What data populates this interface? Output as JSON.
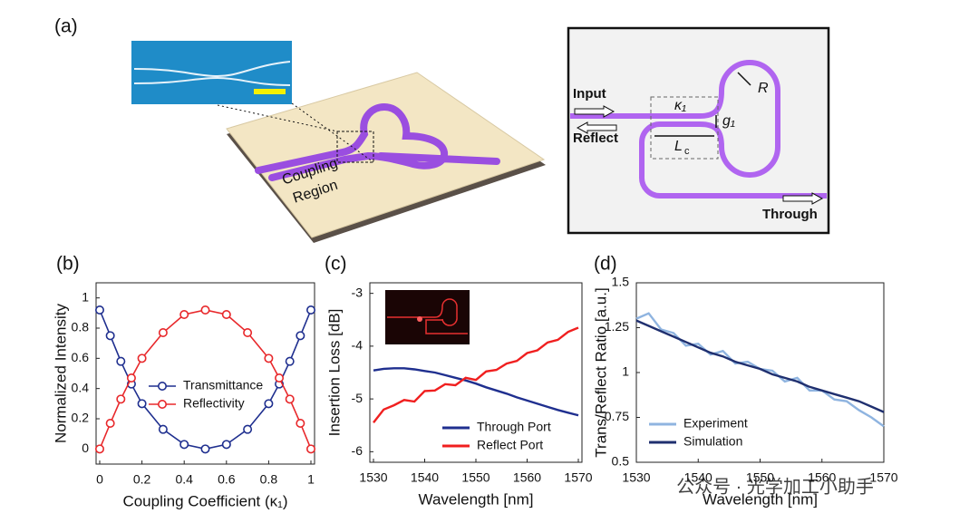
{
  "panel_a": {
    "label": "(a)",
    "coupling_region": [
      "Coupling",
      "Region"
    ],
    "schematic": {
      "input": "Input",
      "reflect": "Reflect",
      "through": "Through",
      "kappa": "κ₁",
      "gap": "g₁",
      "length": "L",
      "length_sub": "c",
      "radius": "R"
    }
  },
  "chart_data": [
    {
      "type": "line",
      "label": "(b)",
      "x_label": "Coupling Coefficient (κ₁)",
      "y_label": "Normalized Intensity",
      "x": [
        0,
        0.05,
        0.1,
        0.15,
        0.2,
        0.3,
        0.4,
        0.5,
        0.6,
        0.7,
        0.8,
        0.85,
        0.9,
        0.95,
        1
      ],
      "series": [
        {
          "name": "Transmittance",
          "color": "#1f2f8f",
          "values": [
            0.92,
            0.75,
            0.58,
            0.43,
            0.3,
            0.13,
            0.03,
            0,
            0.03,
            0.13,
            0.3,
            0.43,
            0.58,
            0.75,
            0.92
          ]
        },
        {
          "name": "Reflectivity",
          "color": "#e8282b",
          "values": [
            0,
            0.17,
            0.33,
            0.47,
            0.6,
            0.77,
            0.89,
            0.92,
            0.89,
            0.77,
            0.6,
            0.47,
            0.33,
            0.17,
            0
          ]
        }
      ],
      "markers": true,
      "legend": "center",
      "xlim": [
        0,
        1
      ],
      "xticks": [
        0,
        0.2,
        0.4,
        0.6,
        0.8,
        1
      ],
      "ylim": [
        -0.1,
        1.1
      ],
      "yticks": [
        0,
        0.2,
        0.4,
        0.6,
        0.8,
        1
      ]
    },
    {
      "type": "line",
      "label": "(c)",
      "x_label": "Wavelength [nm]",
      "y_label": "Insertion Loss [dB]",
      "x": [
        1530,
        1532,
        1534,
        1536,
        1538,
        1540,
        1542,
        1544,
        1546,
        1548,
        1550,
        1552,
        1554,
        1556,
        1558,
        1560,
        1562,
        1564,
        1566,
        1568,
        1570
      ],
      "series": [
        {
          "name": "Through Port",
          "color": "#1f2f8f",
          "values": [
            -4.46,
            -4.43,
            -4.42,
            -4.42,
            -4.44,
            -4.47,
            -4.5,
            -4.55,
            -4.6,
            -4.65,
            -4.71,
            -4.78,
            -4.84,
            -4.9,
            -4.97,
            -5.03,
            -5.09,
            -5.15,
            -5.21,
            -5.26,
            -5.31
          ]
        },
        {
          "name": "Reflect Port",
          "color": "#f01f1f",
          "values": [
            -5.45,
            -5.2,
            -5.12,
            -5.02,
            -5.05,
            -4.85,
            -4.84,
            -4.72,
            -4.74,
            -4.6,
            -4.64,
            -4.48,
            -4.45,
            -4.33,
            -4.28,
            -4.13,
            -4.08,
            -3.93,
            -3.88,
            -3.73,
            -3.65
          ]
        }
      ],
      "markers": false,
      "legend": "lower right",
      "xlim": [
        1530,
        1570
      ],
      "xticks": [
        1530,
        1540,
        1550,
        1560,
        1570
      ],
      "ylim": [
        -6.2,
        -2.8
      ],
      "yticks": [
        -6,
        -5,
        -4,
        -3
      ]
    },
    {
      "type": "line",
      "label": "(d)",
      "x_label": "Wavelength [nm]",
      "y_label": "Trans/Reflect Ratio [a.u.]",
      "x": [
        1530,
        1532,
        1534,
        1536,
        1538,
        1540,
        1542,
        1544,
        1546,
        1548,
        1550,
        1552,
        1554,
        1556,
        1558,
        1560,
        1562,
        1564,
        1566,
        1568,
        1570
      ],
      "series": [
        {
          "name": "Experiment",
          "color": "#8fb4e0",
          "values": [
            1.3,
            1.33,
            1.24,
            1.22,
            1.15,
            1.16,
            1.1,
            1.12,
            1.05,
            1.06,
            1.02,
            1.01,
            0.95,
            0.97,
            0.9,
            0.9,
            0.85,
            0.84,
            0.79,
            0.75,
            0.7
          ]
        },
        {
          "name": "Simulation",
          "color": "#1f2f6f",
          "values": [
            1.29,
            1.26,
            1.23,
            1.2,
            1.17,
            1.14,
            1.11,
            1.09,
            1.06,
            1.04,
            1.02,
            0.99,
            0.97,
            0.95,
            0.92,
            0.9,
            0.88,
            0.86,
            0.84,
            0.81,
            0.78
          ]
        }
      ],
      "markers": false,
      "legend": "lower left",
      "xlim": [
        1530,
        1570
      ],
      "xticks": [
        1530,
        1540,
        1550,
        1560,
        1570
      ],
      "ylim": [
        0.5,
        1.5
      ],
      "yticks": [
        0.5,
        0.75,
        1,
        1.25,
        1.5
      ]
    }
  ],
  "watermark": "公众号 · 光学加工小助手"
}
